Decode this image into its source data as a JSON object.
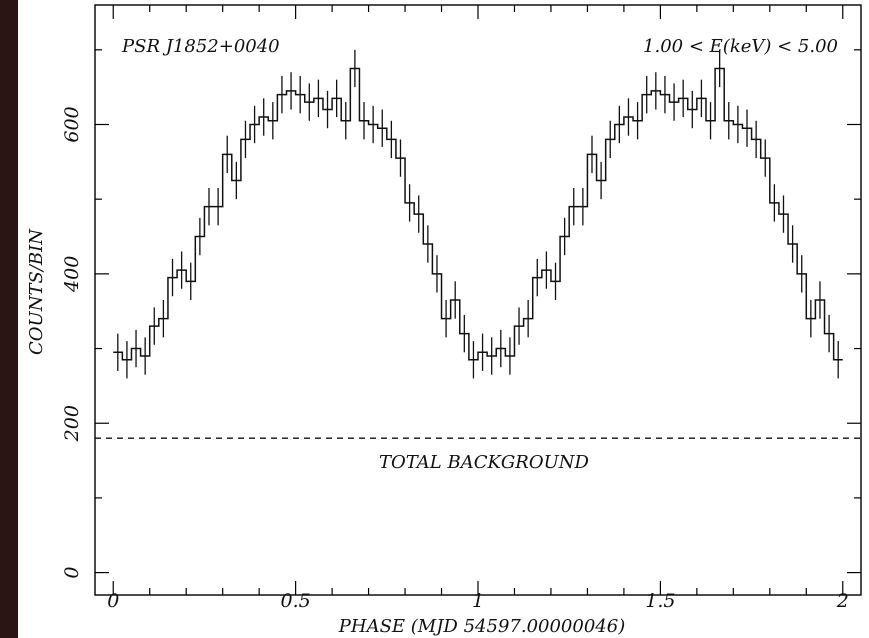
{
  "chart_data": {
    "type": "step",
    "annotation_left": "PSR J1852+0040",
    "annotation_right": "1.00 < E(keV) < 5.00",
    "background_label": "TOTAL BACKGROUND",
    "xlabel": "PHASE (MJD 54597.00000046)",
    "ylabel": "COUNTS/BIN",
    "xlim": [
      -0.05,
      2.05
    ],
    "ylim": [
      -30,
      760
    ],
    "xticks": [
      0,
      0.5,
      1,
      1.5,
      2
    ],
    "xtick_labels": [
      "0",
      "0.5",
      "1",
      "1.5",
      "2"
    ],
    "yticks": [
      0,
      200,
      400,
      600
    ],
    "ytick_labels": [
      "0",
      "200",
      "400",
      "600"
    ],
    "background_level": 180,
    "bin_width": 0.025,
    "bin_error": 25,
    "counts": [
      295,
      285,
      300,
      290,
      330,
      340,
      395,
      405,
      390,
      450,
      490,
      490,
      560,
      525,
      580,
      600,
      610,
      605,
      640,
      645,
      640,
      630,
      635,
      620,
      635,
      605,
      675,
      605,
      600,
      595,
      580,
      555,
      495,
      480,
      440,
      400,
      340,
      365,
      320,
      285,
      295,
      290,
      300,
      290,
      330,
      340,
      395,
      405,
      390,
      450,
      490,
      490,
      560,
      525,
      580,
      600,
      610,
      605,
      640,
      645,
      640,
      630,
      635,
      620,
      635,
      605,
      675,
      605,
      600,
      595,
      580,
      555,
      495,
      480,
      440,
      400,
      340,
      365,
      320,
      285
    ],
    "colors": {
      "line": "#111111",
      "frame": "#000000",
      "page_background": "#2a1414"
    }
  }
}
